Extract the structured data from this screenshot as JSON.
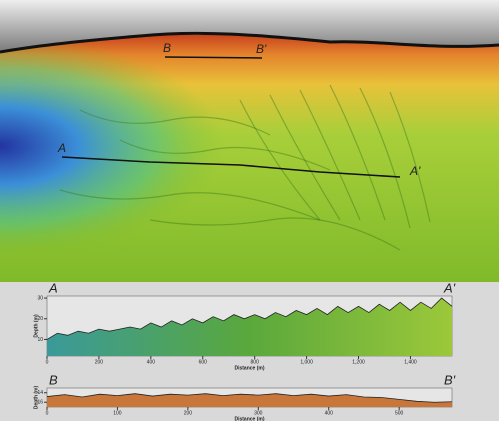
{
  "map": {
    "labels": [
      "B",
      "B'",
      "A",
      "A'"
    ]
  },
  "chart_data": [
    {
      "type": "area",
      "start_label": "A",
      "end_label": "A'",
      "xlabel": "Distance (m)",
      "ylabel": "Depth (m)",
      "x": [
        0,
        40,
        80,
        120,
        160,
        200,
        240,
        280,
        320,
        360,
        400,
        440,
        480,
        520,
        560,
        600,
        640,
        680,
        720,
        760,
        800,
        840,
        880,
        920,
        960,
        1000,
        1040,
        1080,
        1120,
        1160,
        1200,
        1240,
        1280,
        1320,
        1360,
        1400,
        1440,
        1480,
        1520,
        1560
      ],
      "values": [
        10,
        13,
        12,
        14,
        13,
        15,
        14,
        15,
        16,
        15,
        18,
        16,
        19,
        17,
        20,
        18,
        21,
        19,
        22,
        20,
        22,
        20,
        23,
        21,
        24,
        22,
        25,
        22,
        26,
        23,
        26,
        23,
        27,
        24,
        28,
        24,
        28,
        25,
        30,
        26
      ],
      "color": "#5aa83c",
      "xlim": [
        0,
        1560
      ],
      "xticks": [
        0,
        200,
        400,
        600,
        800,
        {
          "value": 1000,
          "label": "1,000"
        },
        {
          "value": 1200,
          "label": "1,200"
        },
        {
          "value": 1400,
          "label": "1,400"
        }
      ],
      "ylim": [
        2,
        31
      ],
      "yticks": [
        10,
        20,
        30
      ]
    },
    {
      "type": "area",
      "start_label": "B",
      "end_label": "B'",
      "xlabel": "Distance (m)",
      "ylabel": "Depth (m)",
      "x": [
        0,
        25,
        50,
        75,
        100,
        125,
        150,
        175,
        200,
        225,
        250,
        275,
        300,
        325,
        350,
        375,
        400,
        425,
        450,
        475,
        500,
        525,
        550,
        575
      ],
      "values": [
        14.8,
        14.4,
        14.9,
        14.3,
        14.6,
        14.2,
        14.7,
        14.3,
        14.5,
        14.2,
        14.6,
        14.3,
        14.5,
        14.2,
        14.6,
        14.3,
        14.7,
        14.4,
        14.9,
        15.0,
        15.4,
        15.8,
        16.0,
        15.9
      ],
      "color": "#c8763a",
      "xlim": [
        0,
        575
      ],
      "xticks": [
        0,
        100,
        200,
        300,
        400,
        500
      ],
      "ylim": [
        17,
        13
      ],
      "yticks": [
        14,
        16
      ]
    }
  ]
}
